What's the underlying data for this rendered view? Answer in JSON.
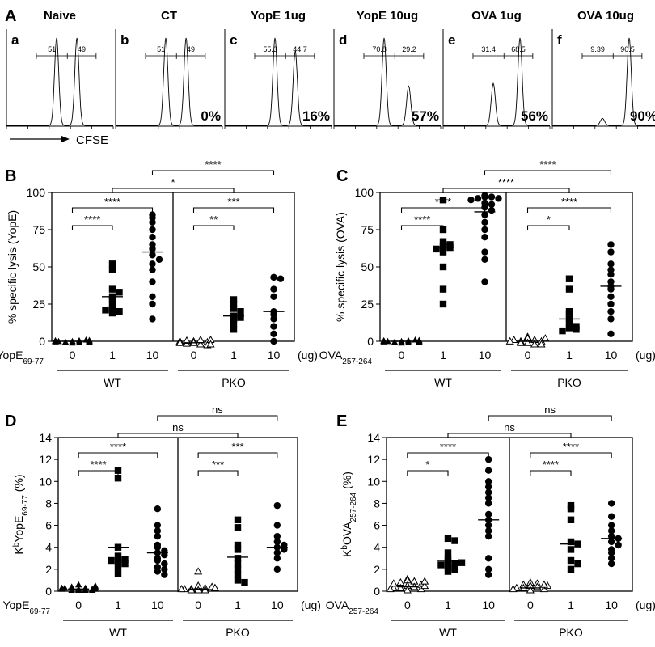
{
  "figure_panels": {
    "A": "A",
    "B": "B",
    "C": "C",
    "D": "D",
    "E": "E"
  },
  "cfse_label": "CFSE",
  "chart_data": [
    {
      "panel": "A",
      "type": "histogram",
      "xlabel": "CFSE",
      "histograms": [
        {
          "letter": "a",
          "title": "Naive",
          "gate_left": "51",
          "gate_right": "49",
          "percent": "",
          "peaks": [
            {
              "pos": 0.47,
              "height": 1.0
            },
            {
              "pos": 0.66,
              "height": 1.0
            }
          ]
        },
        {
          "letter": "b",
          "title": "CT",
          "gate_left": "51",
          "gate_right": "49",
          "percent": "0%",
          "peaks": [
            {
              "pos": 0.47,
              "height": 1.0
            },
            {
              "pos": 0.66,
              "height": 1.0
            }
          ]
        },
        {
          "letter": "c",
          "title": "YopE 1ug",
          "gate_left": "55.3",
          "gate_right": "44.7",
          "percent": "16%",
          "peaks": [
            {
              "pos": 0.47,
              "height": 1.0
            },
            {
              "pos": 0.66,
              "height": 0.85
            }
          ]
        },
        {
          "letter": "d",
          "title": "YopE 10ug",
          "gate_left": "70.8",
          "gate_right": "29.2",
          "percent": "57%",
          "peaks": [
            {
              "pos": 0.47,
              "height": 1.0
            },
            {
              "pos": 0.7,
              "height": 0.45
            }
          ]
        },
        {
          "letter": "e",
          "title": "OVA 1ug",
          "gate_left": "31.4",
          "gate_right": "68.5",
          "percent": "56%",
          "peaks": [
            {
              "pos": 0.47,
              "height": 0.48
            },
            {
              "pos": 0.72,
              "height": 1.0
            }
          ]
        },
        {
          "letter": "f",
          "title": "OVA 10ug",
          "gate_left": "9.39",
          "gate_right": "90.5",
          "percent": "90%",
          "peaks": [
            {
              "pos": 0.47,
              "height": 0.08
            },
            {
              "pos": 0.72,
              "height": 1.0
            }
          ]
        }
      ]
    },
    {
      "panel": "B",
      "type": "scatter",
      "ylabel": "% specific lysis (YopE)",
      "ylim": [
        0,
        100
      ],
      "yticks": [
        0,
        25,
        50,
        75,
        100
      ],
      "peptide_label": "YopE",
      "peptide_sub": "69-77",
      "unit_label": "(ug)",
      "groups": [
        {
          "genotype": "WT",
          "dose": "0",
          "marker": "triangle-filled",
          "mean": 0,
          "values": [
            0,
            0.5,
            -0.5,
            1,
            -1,
            0,
            0.3,
            -0.3,
            0.7,
            -0.8,
            0.2,
            -0.2,
            0.5,
            -0.5,
            0.1
          ]
        },
        {
          "genotype": "WT",
          "dose": "1",
          "marker": "square",
          "mean": 30,
          "values": [
            52,
            48,
            35,
            33,
            30,
            28,
            25,
            22,
            20,
            19,
            21
          ]
        },
        {
          "genotype": "WT",
          "dose": "10",
          "marker": "circle",
          "mean": 60,
          "values": [
            85,
            83,
            80,
            75,
            70,
            65,
            62,
            58,
            55,
            52,
            48,
            40,
            30,
            25,
            15
          ]
        },
        {
          "genotype": "PKO",
          "dose": "0",
          "marker": "triangle-open",
          "mean": -1,
          "values": [
            0,
            -1,
            -2,
            1,
            -1.5,
            0.5,
            -0.5,
            -2.5,
            0,
            -1,
            1,
            -2
          ]
        },
        {
          "genotype": "PKO",
          "dose": "1",
          "marker": "square",
          "mean": 17,
          "values": [
            28,
            25,
            22,
            20,
            17,
            16,
            15,
            12,
            8
          ]
        },
        {
          "genotype": "PKO",
          "dose": "10",
          "marker": "circle",
          "mean": 20,
          "values": [
            43,
            42,
            35,
            30,
            20,
            18,
            15,
            10,
            5,
            0
          ]
        }
      ],
      "comparisons": [
        {
          "from": 0,
          "to": 1,
          "label": "****",
          "level": 0
        },
        {
          "from": 0,
          "to": 2,
          "label": "****",
          "level": 1
        },
        {
          "from": 3,
          "to": 4,
          "label": "**",
          "level": 0
        },
        {
          "from": 3,
          "to": 5,
          "label": "***",
          "level": 1
        },
        {
          "from": 1,
          "to": 4,
          "label": "*",
          "level": 2
        },
        {
          "from": 2,
          "to": 5,
          "label": "****",
          "level": 3
        }
      ]
    },
    {
      "panel": "C",
      "type": "scatter",
      "ylabel": "% specific lysis (OVA)",
      "ylim": [
        0,
        100
      ],
      "yticks": [
        0,
        25,
        50,
        75,
        100
      ],
      "peptide_label": "OVA",
      "peptide_sub": "257-264",
      "unit_label": "(ug)",
      "groups": [
        {
          "genotype": "WT",
          "dose": "0",
          "marker": "triangle-filled",
          "mean": 0,
          "values": [
            0,
            0.5,
            -0.5,
            1,
            -1,
            0,
            0.3,
            -0.3,
            0.7,
            -0.8,
            0.2,
            -0.2,
            0.5,
            -0.5,
            0.1
          ]
        },
        {
          "genotype": "WT",
          "dose": "1",
          "marker": "square",
          "mean": 63,
          "values": [
            95,
            75,
            67,
            65,
            64,
            63,
            62,
            60,
            50,
            35,
            25
          ]
        },
        {
          "genotype": "WT",
          "dose": "10",
          "marker": "circle",
          "mean": 87,
          "values": [
            98,
            97,
            97,
            96,
            96,
            95,
            93,
            92,
            90,
            88,
            85,
            80,
            75,
            70,
            60,
            55,
            40
          ]
        },
        {
          "genotype": "PKO",
          "dose": "0",
          "marker": "triangle-open",
          "mean": 0,
          "values": [
            3,
            2,
            1,
            0,
            -1,
            -2,
            0,
            1,
            -1,
            2,
            0,
            -2
          ]
        },
        {
          "genotype": "PKO",
          "dose": "1",
          "marker": "square",
          "mean": 15,
          "values": [
            42,
            35,
            20,
            18,
            15,
            12,
            10,
            9,
            8,
            7
          ]
        },
        {
          "genotype": "PKO",
          "dose": "10",
          "marker": "circle",
          "mean": 37,
          "values": [
            65,
            60,
            52,
            48,
            45,
            40,
            37,
            35,
            30,
            25,
            20,
            15,
            5
          ]
        }
      ],
      "comparisons": [
        {
          "from": 0,
          "to": 1,
          "label": "****",
          "level": 0
        },
        {
          "from": 0,
          "to": 2,
          "label": "****",
          "level": 1
        },
        {
          "from": 3,
          "to": 4,
          "label": "*",
          "level": 0
        },
        {
          "from": 3,
          "to": 5,
          "label": "****",
          "level": 1
        },
        {
          "from": 1,
          "to": 4,
          "label": "****",
          "level": 2
        },
        {
          "from": 2,
          "to": 5,
          "label": "****",
          "level": 3
        }
      ]
    },
    {
      "panel": "D",
      "type": "scatter",
      "ylabel_prefix": "K",
      "ylabel_sup": "b",
      "ylabel_main": "YopE",
      "ylabel_sub": "69-77",
      "ylabel_suffix": " (%)",
      "ylim": [
        0,
        14
      ],
      "yticks": [
        0,
        2,
        4,
        6,
        8,
        10,
        12,
        14
      ],
      "peptide_label": "YopE",
      "peptide_sub": "69-77",
      "unit_label": "(ug)",
      "groups": [
        {
          "genotype": "WT",
          "dose": "0",
          "marker": "triangle-filled",
          "mean": 0.2,
          "values": [
            0.1,
            0.2,
            0.3,
            0.4,
            0.2,
            0.1,
            0.3,
            0.5,
            0.2,
            0.4,
            0.1,
            0.3,
            0.2,
            0.6,
            0.1
          ]
        },
        {
          "genotype": "WT",
          "dose": "1",
          "marker": "square",
          "mean": 4,
          "values": [
            11,
            10.3,
            4,
            3.2,
            2.9,
            2.7,
            2.5,
            2.2,
            1.6,
            2.8
          ]
        },
        {
          "genotype": "WT",
          "dose": "10",
          "marker": "circle",
          "mean": 3.5,
          "values": [
            7.5,
            6,
            5.5,
            5,
            4.2,
            4,
            3.7,
            3.5,
            3.3,
            3,
            2.8,
            2.5,
            2.2,
            2,
            1.8,
            1.5
          ]
        },
        {
          "genotype": "PKO",
          "dose": "0",
          "marker": "triangle-open",
          "mean": 0.2,
          "values": [
            1.8,
            0.5,
            0.3,
            0.2,
            0.1,
            0.4,
            0.2,
            0.3,
            0.1,
            0.2,
            0.3,
            0.1
          ]
        },
        {
          "genotype": "PKO",
          "dose": "1",
          "marker": "square",
          "mean": 3.1,
          "values": [
            6.5,
            5.8,
            4.2,
            3.8,
            3,
            2.5,
            2,
            1.5,
            1,
            0.8
          ]
        },
        {
          "genotype": "PKO",
          "dose": "10",
          "marker": "circle",
          "mean": 4,
          "values": [
            7.8,
            6,
            5,
            4.5,
            4.2,
            4,
            3.8,
            3.5,
            3,
            2
          ]
        }
      ],
      "comparisons": [
        {
          "from": 0,
          "to": 1,
          "label": "****",
          "level": 0
        },
        {
          "from": 0,
          "to": 2,
          "label": "****",
          "level": 1
        },
        {
          "from": 3,
          "to": 4,
          "label": "***",
          "level": 0
        },
        {
          "from": 3,
          "to": 5,
          "label": "***",
          "level": 1
        },
        {
          "from": 1,
          "to": 4,
          "label": "ns",
          "level": 2
        },
        {
          "from": 2,
          "to": 5,
          "label": "ns",
          "level": 3
        }
      ]
    },
    {
      "panel": "E",
      "type": "scatter",
      "ylabel_prefix": "K",
      "ylabel_sup": "b",
      "ylabel_main": "OVA",
      "ylabel_sub": "257-264",
      "ylabel_suffix": " (%)",
      "ylim": [
        0,
        14
      ],
      "yticks": [
        0,
        2,
        4,
        6,
        8,
        10,
        12,
        14
      ],
      "peptide_label": "OVA",
      "peptide_sub": "257-264",
      "unit_label": "(ug)",
      "groups": [
        {
          "genotype": "WT",
          "dose": "0",
          "marker": "triangle-open",
          "mean": 0.4,
          "values": [
            1.1,
            1,
            0.9,
            0.8,
            0.6,
            0.5,
            0.4,
            0.3,
            0.2,
            0.3,
            0.5,
            0.7,
            0.9,
            0.2,
            0.1
          ]
        },
        {
          "genotype": "WT",
          "dose": "1",
          "marker": "square",
          "mean": 2.8,
          "values": [
            4.8,
            4.6,
            3.5,
            3,
            2.8,
            2.5,
            2.4,
            2.2,
            2,
            1.8,
            2.6
          ]
        },
        {
          "genotype": "WT",
          "dose": "10",
          "marker": "circle",
          "mean": 6.5,
          "values": [
            12,
            11,
            10,
            9.5,
            9,
            8.5,
            8,
            7,
            6.5,
            6,
            5.5,
            5,
            3,
            2,
            1.5
          ]
        },
        {
          "genotype": "PKO",
          "dose": "0",
          "marker": "triangle-open",
          "mean": 0.3,
          "values": [
            0.8,
            0.7,
            0.6,
            0.5,
            0.4,
            0.3,
            0.2,
            0.1,
            0.3,
            0.5,
            0.6,
            0.2
          ]
        },
        {
          "genotype": "PKO",
          "dose": "1",
          "marker": "square",
          "mean": 4.3,
          "values": [
            7.8,
            7.5,
            6.5,
            4.5,
            4.3,
            3.8,
            2.8,
            2.5,
            2
          ]
        },
        {
          "genotype": "PKO",
          "dose": "10",
          "marker": "circle",
          "mean": 4.8,
          "values": [
            8,
            6.8,
            6,
            5.5,
            5,
            4.8,
            4.5,
            4.2,
            3.8,
            3.5,
            3,
            2.5
          ]
        }
      ],
      "comparisons": [
        {
          "from": 0,
          "to": 1,
          "label": "*",
          "level": 0
        },
        {
          "from": 0,
          "to": 2,
          "label": "****",
          "level": 1
        },
        {
          "from": 3,
          "to": 4,
          "label": "****",
          "level": 0
        },
        {
          "from": 3,
          "to": 5,
          "label": "****",
          "level": 1
        },
        {
          "from": 1,
          "to": 4,
          "label": "ns",
          "level": 2
        },
        {
          "from": 2,
          "to": 5,
          "label": "ns",
          "level": 3
        }
      ]
    }
  ]
}
